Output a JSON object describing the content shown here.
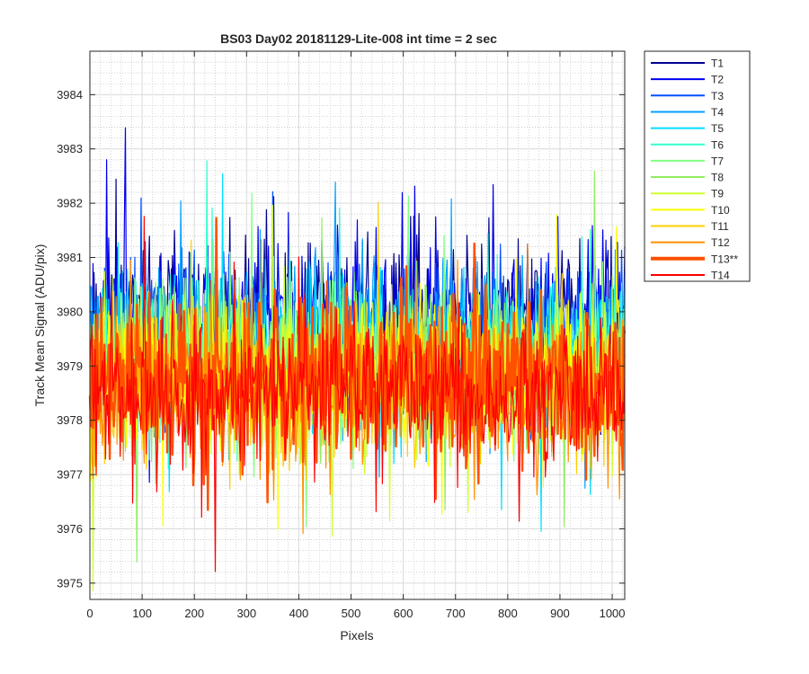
{
  "chart_data": {
    "type": "line",
    "title": "BS03 Day02 20181129-Lite-008 int time = 2 sec",
    "xlabel": "Pixels",
    "ylabel": "Track Mean Signal (ADU/pix)",
    "xlim": [
      0,
      1024
    ],
    "ylim": [
      3974.7,
      3984.8
    ],
    "xticks": [
      0,
      100,
      200,
      300,
      400,
      500,
      600,
      700,
      800,
      900,
      1000
    ],
    "yticks": [
      3975,
      3976,
      3977,
      3978,
      3979,
      3980,
      3981,
      3982,
      3983,
      3984
    ],
    "xtick_labels": [
      "0",
      "100",
      "200",
      "300",
      "400",
      "500",
      "600",
      "700",
      "800",
      "900",
      "1000"
    ],
    "ytick_labels": [
      "3975",
      "3976",
      "3977",
      "3978",
      "3979",
      "3980",
      "3981",
      "3982",
      "3983",
      "3984"
    ],
    "grid": "major and minor (dotted)",
    "legend_position": "outside-top-right",
    "series": [
      {
        "name": "T1",
        "color": "#00008f",
        "mean": 3979.9,
        "std": 0.75,
        "seed": 11
      },
      {
        "name": "T2",
        "color": "#0000ef",
        "mean": 3979.8,
        "std": 0.75,
        "seed": 23
      },
      {
        "name": "T3",
        "color": "#0050ff",
        "mean": 3979.6,
        "std": 0.75,
        "seed": 37
      },
      {
        "name": "T4",
        "color": "#00a0ff",
        "mean": 3979.4,
        "std": 0.75,
        "seed": 41
      },
      {
        "name": "T5",
        "color": "#00dfff",
        "mean": 3979.3,
        "std": 0.75,
        "seed": 53
      },
      {
        "name": "T6",
        "color": "#30ffcf",
        "mean": 3979.2,
        "std": 0.75,
        "seed": 67
      },
      {
        "name": "T7",
        "color": "#80ff80",
        "mean": 3979.1,
        "std": 0.75,
        "seed": 71
      },
      {
        "name": "T8",
        "color": "#90ee60",
        "mean": 3979.0,
        "std": 0.75,
        "seed": 83
      },
      {
        "name": "T9",
        "color": "#cfff30",
        "mean": 3978.9,
        "std": 0.75,
        "seed": 97
      },
      {
        "name": "T10",
        "color": "#ffff00",
        "mean": 3978.8,
        "std": 0.75,
        "seed": 101
      },
      {
        "name": "T11",
        "color": "#ffcf00",
        "mean": 3978.7,
        "std": 0.75,
        "seed": 113
      },
      {
        "name": "T12",
        "color": "#ff9000",
        "mean": 3978.6,
        "std": 0.75,
        "seed": 127
      },
      {
        "name": "T13**",
        "color": "#ff5000",
        "mean": 3978.7,
        "std": 0.75,
        "seed": 131,
        "bold": true
      },
      {
        "name": "T14",
        "color": "#ff0000",
        "mean": 3978.5,
        "std": 0.75,
        "seed": 139
      }
    ]
  }
}
